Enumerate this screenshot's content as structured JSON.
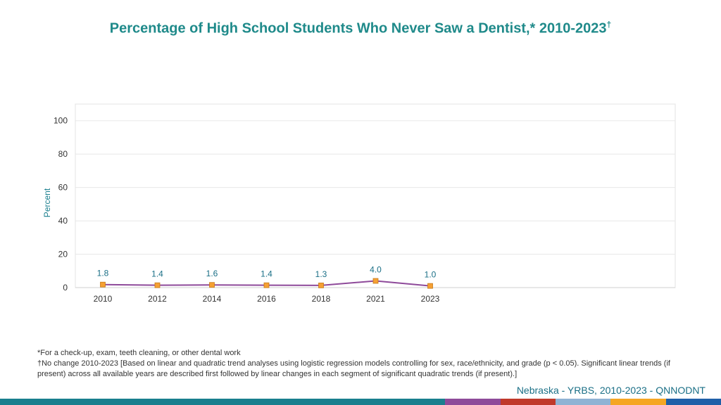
{
  "title": "Percentage of High School Students Who Never Saw a Dentist,* 2010-2023",
  "title_mark": "†",
  "chart_data": {
    "type": "line",
    "ylabel": "Percent",
    "ylim": [
      0,
      110
    ],
    "yticks": [
      "0",
      "20",
      "40",
      "60",
      "80",
      "100"
    ],
    "categories": [
      "2010",
      "2012",
      "2014",
      "2016",
      "2018",
      "2021",
      "2023"
    ],
    "values": [
      1.8,
      1.4,
      1.6,
      1.4,
      1.3,
      4.0,
      1.0
    ],
    "data_labels": [
      "1.8",
      "1.4",
      "1.6",
      "1.4",
      "1.3",
      "4.0",
      "1.0"
    ],
    "line_color": "#8e4a9a",
    "marker_color": "#f5a033",
    "grid": true
  },
  "footnotes": {
    "line1": "*For a check-up, exam, teeth cleaning, or other dental work",
    "line2": "†No change 2010-2023 [Based on linear and quadratic trend analyses using logistic regression models controlling for sex, race/ethnicity, and grade (p < 0.05). Significant linear trends (if present) across all available years are described first followed by linear changes in each segment of significant quadratic trends (if present).]"
  },
  "source": "Nebraska - YRBS, 2010-2023 - QNNODNT",
  "bottom_bar_colors": [
    "#1a7f8e",
    "#8e4a9a",
    "#c0392b",
    "#8fb3d4",
    "#f5a623",
    "#1f5fa8"
  ]
}
